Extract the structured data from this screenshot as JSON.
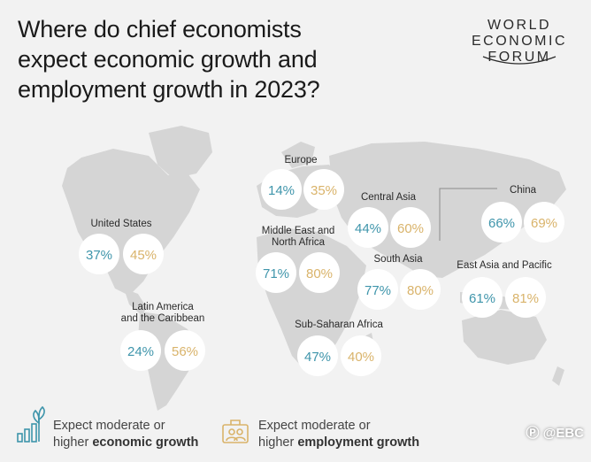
{
  "header": {
    "title_lines": [
      "Where do chief economists",
      "expect economic growth and",
      "employment growth in 2023?"
    ]
  },
  "logo": {
    "lines": [
      "WORLD",
      "ECONOMIC",
      "FORUM"
    ]
  },
  "colors": {
    "economic": "#3f95ab",
    "employment": "#d9b36a",
    "map": "#d5d5d5",
    "background": "#f2f2f2",
    "circle": "#ffffff"
  },
  "chart_data": {
    "type": "table",
    "series": [
      {
        "key": "economic",
        "color": "#3f95ab"
      },
      {
        "key": "employment",
        "color": "#d9b36a"
      }
    ],
    "regions": [
      {
        "id": "europe",
        "label_lines": [
          "Europe"
        ],
        "economic": 14,
        "employment": 35
      },
      {
        "id": "united-states",
        "label_lines": [
          "United States"
        ],
        "economic": 37,
        "employment": 45
      },
      {
        "id": "central-asia",
        "label_lines": [
          "Central Asia"
        ],
        "economic": 44,
        "employment": 60
      },
      {
        "id": "china",
        "label_lines": [
          "China"
        ],
        "economic": 66,
        "employment": 69
      },
      {
        "id": "mena",
        "label_lines": [
          "Middle East and",
          "North Africa"
        ],
        "economic": 71,
        "employment": 80
      },
      {
        "id": "south-asia",
        "label_lines": [
          "South Asia"
        ],
        "economic": 77,
        "employment": 80
      },
      {
        "id": "east-asia-pacific",
        "label_lines": [
          "East Asia and Pacific"
        ],
        "economic": 61,
        "employment": 81
      },
      {
        "id": "latin-america",
        "label_lines": [
          "Latin America",
          "and the Caribbean"
        ],
        "economic": 24,
        "employment": 56
      },
      {
        "id": "sub-saharan-africa",
        "label_lines": [
          "Sub-Saharan Africa"
        ],
        "economic": 47,
        "employment": 40
      }
    ],
    "legend": [
      {
        "key": "economic",
        "line1": "Expect moderate or",
        "line2_plain": "higher ",
        "line2_bold": "economic growth",
        "icon": "bar-chart-sprout-icon"
      },
      {
        "key": "employment",
        "line1": "Expect moderate or",
        "line2_plain": "higher ",
        "line2_bold": "employment growth",
        "icon": "briefcase-people-icon"
      }
    ]
  },
  "watermark": {
    "text": "@EBC",
    "icon": "social-logo-icon"
  }
}
